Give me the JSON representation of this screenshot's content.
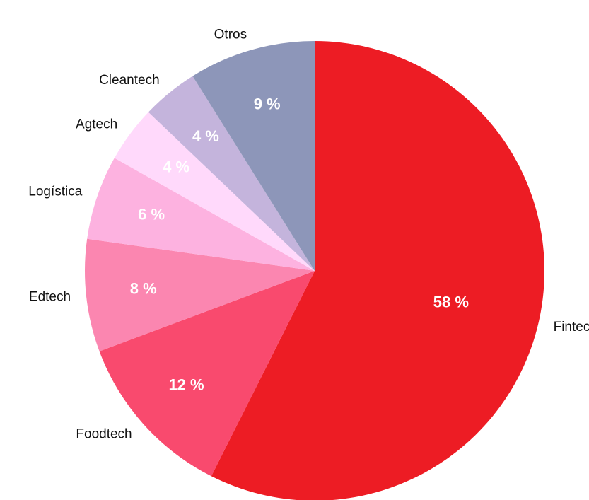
{
  "chart_data": {
    "type": "pie",
    "categories": [
      "Fintech",
      "Foodtech",
      "Edtech",
      "Logística",
      "Agtech",
      "Cleantech",
      "Otros"
    ],
    "values": [
      58,
      12,
      8,
      6,
      4,
      4,
      9
    ],
    "value_labels": [
      "58 %",
      "12 %",
      "8 %",
      "6 %",
      "4 %",
      "4 %",
      "9 %"
    ],
    "colors": [
      "#ed1c24",
      "#f94a6e",
      "#fb86b0",
      "#fdb2e0",
      "#ffd9fb",
      "#c4b4dc",
      "#8d96b9"
    ]
  }
}
